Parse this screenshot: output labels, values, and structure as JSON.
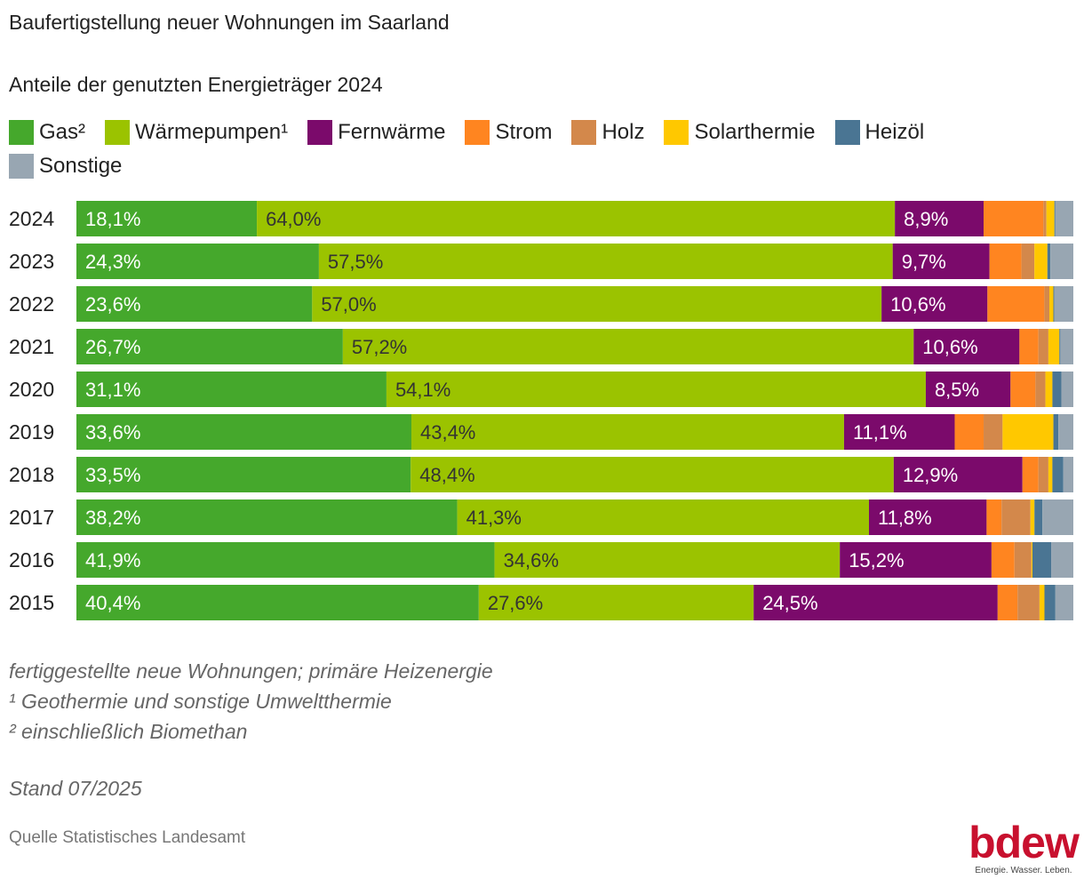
{
  "title": "Baufertigstellung neuer Wohnungen im Saarland",
  "subtitle": "Anteile der genutzten Energieträger 2024",
  "notes": [
    "fertiggestellte neue Wohnungen; primäre Heizenergie",
    "¹ Geothermie und sonstige Umweltthermie",
    "² einschließlich Biomethan"
  ],
  "stand": "Stand 07/2025",
  "source": "Quelle Statistisches Landesamt",
  "logo": {
    "word": "bdew",
    "tagline": "Energie. Wasser. Leben."
  },
  "chart_data": {
    "type": "bar",
    "orientation": "horizontal",
    "stacked": true,
    "unit": "%",
    "categories": [
      "2024",
      "2023",
      "2022",
      "2021",
      "2020",
      "2019",
      "2018",
      "2017",
      "2016",
      "2015"
    ],
    "legend_position": "top",
    "series": [
      {
        "name": "Gas²",
        "color": "#45a82c",
        "values": [
          18.1,
          24.3,
          23.6,
          26.7,
          31.1,
          33.6,
          33.5,
          38.2,
          41.9,
          40.4
        ],
        "labels": [
          "18,1%",
          "24,3%",
          "23,6%",
          "26,7%",
          "31,1%",
          "33,6%",
          "33,5%",
          "38,2%",
          "41,9%",
          "40,4%"
        ]
      },
      {
        "name": "Wärmepumpen¹",
        "color": "#9bc300",
        "values": [
          64.0,
          57.5,
          57.0,
          57.2,
          54.1,
          43.4,
          48.4,
          41.3,
          34.6,
          27.6
        ],
        "labels": [
          "64,0%",
          "57,5%",
          "57,0%",
          "57,2%",
          "54,1%",
          "43,4%",
          "48,4%",
          "41,3%",
          "34,6%",
          "27,6%"
        ]
      },
      {
        "name": "Fernwärme",
        "color": "#7b0a6b",
        "values": [
          8.9,
          9.7,
          10.6,
          10.6,
          8.5,
          11.1,
          12.9,
          11.8,
          15.2,
          24.5
        ],
        "labels": [
          "8,9%",
          "9,7%",
          "10,6%",
          "10,6%",
          "8,5%",
          "11,1%",
          "12,9%",
          "11,8%",
          "15,2%",
          "24,5%"
        ]
      },
      {
        "name": "Strom",
        "color": "#ff8520",
        "values": [
          6.0,
          3.2,
          5.7,
          1.9,
          2.5,
          2.9,
          1.6,
          1.5,
          2.3,
          2.0
        ]
      },
      {
        "name": "Holz",
        "color": "#d3884b",
        "values": [
          0.3,
          1.3,
          0.5,
          1.0,
          1.0,
          1.9,
          1.0,
          2.9,
          1.7,
          2.2
        ]
      },
      {
        "name": "Solarthermie",
        "color": "#ffc800",
        "values": [
          0.8,
          1.3,
          0.4,
          1.1,
          0.7,
          5.1,
          0.4,
          0.4,
          0.1,
          0.5
        ]
      },
      {
        "name": "Heizöl",
        "color": "#4a7593",
        "values": [
          0.1,
          0.3,
          0.1,
          0.1,
          0.9,
          0.5,
          1.1,
          0.8,
          1.9,
          1.1
        ]
      },
      {
        "name": "Sonstige",
        "color": "#98a6b2",
        "values": [
          1.8,
          2.3,
          1.9,
          1.3,
          1.2,
          1.5,
          1.0,
          3.1,
          2.2,
          1.8
        ]
      }
    ],
    "xlim": [
      0,
      100
    ]
  }
}
